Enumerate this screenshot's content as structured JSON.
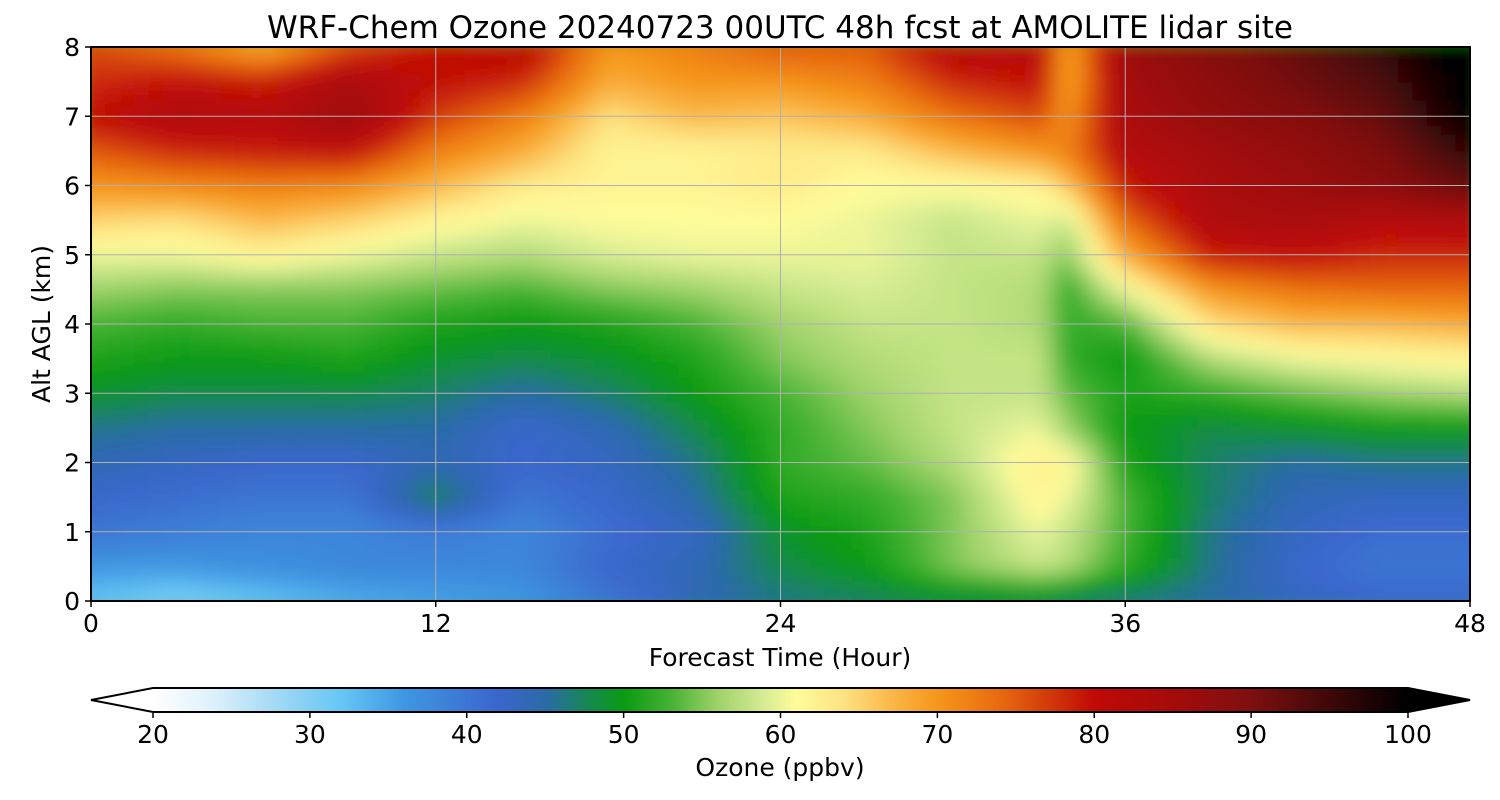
{
  "chart_data": {
    "type": "heatmap",
    "title": "WRF-Chem Ozone  20240723 00UTC 48h fcst at AMOLITE lidar site",
    "xlabel": "Forecast Time (Hour)",
    "ylabel": "Alt AGL (km)",
    "xlim": [
      0,
      48
    ],
    "ylim": [
      0,
      8
    ],
    "x_ticks": [
      "0",
      "12",
      "24",
      "36",
      "48"
    ],
    "y_ticks": [
      "0",
      "1",
      "2",
      "3",
      "4",
      "5",
      "6",
      "7",
      "8"
    ],
    "grid": true,
    "x": [
      0,
      3,
      6,
      9,
      12,
      15,
      18,
      21,
      24,
      27,
      30,
      33,
      34,
      36,
      39,
      42,
      45,
      48
    ],
    "y": [
      0,
      0.5,
      1,
      1.5,
      2,
      2.5,
      3,
      3.5,
      4,
      4.5,
      5,
      5.5,
      6,
      6.5,
      7,
      7.5,
      8
    ],
    "z": [
      [
        32,
        30,
        32,
        34,
        35,
        36,
        40,
        44,
        46,
        47,
        48,
        48,
        47,
        46,
        45,
        43,
        42,
        42
      ],
      [
        36,
        36,
        37,
        38,
        38,
        38,
        42,
        44,
        48,
        50,
        55,
        58,
        57,
        52,
        46,
        42,
        40,
        40
      ],
      [
        40,
        39,
        38,
        38,
        39,
        38,
        41,
        43,
        49,
        51,
        55,
        60,
        58,
        53,
        46,
        43,
        41,
        41
      ],
      [
        42,
        41,
        40,
        40,
        48,
        40,
        42,
        45,
        51,
        52,
        55,
        62,
        60,
        53,
        47,
        44,
        43,
        43
      ],
      [
        44,
        43,
        42,
        42,
        44,
        42,
        43,
        46,
        52,
        54,
        57,
        63,
        62,
        51,
        47,
        45,
        46,
        46
      ],
      [
        46,
        45,
        45,
        45,
        45,
        42,
        44,
        48,
        52,
        55,
        58,
        60,
        56,
        50,
        48,
        49,
        50,
        50
      ],
      [
        49,
        48,
        48,
        48,
        47,
        45,
        47,
        50,
        53,
        56,
        58,
        58,
        54,
        51,
        52,
        54,
        56,
        57
      ],
      [
        51,
        50,
        50,
        51,
        49,
        48,
        49,
        51,
        55,
        57,
        58,
        58,
        52,
        50,
        57,
        60,
        61,
        62
      ],
      [
        53,
        52,
        53,
        53,
        51,
        50,
        51,
        53,
        56,
        58,
        58,
        57,
        52,
        53,
        64,
        67,
        67,
        68
      ],
      [
        56,
        55,
        55,
        55,
        54,
        53,
        55,
        56,
        58,
        59,
        58,
        57,
        52,
        60,
        70,
        73,
        74,
        74
      ],
      [
        60,
        60,
        62,
        60,
        58,
        57,
        59,
        60,
        60,
        60,
        58,
        58,
        55,
        68,
        79,
        80,
        78,
        78
      ],
      [
        65,
        64,
        67,
        65,
        62,
        60,
        61,
        61,
        61,
        60,
        58,
        60,
        58,
        74,
        83,
        84,
        82,
        83
      ],
      [
        70,
        71,
        72,
        71,
        67,
        63,
        62,
        62,
        63,
        61,
        61,
        62,
        66,
        79,
        84,
        86,
        88,
        92
      ],
      [
        75,
        78,
        79,
        80,
        72,
        68,
        62,
        62,
        63,
        63,
        67,
        70,
        72,
        82,
        85,
        87,
        90,
        96
      ],
      [
        80,
        83,
        82,
        86,
        77,
        72,
        64,
        67,
        66,
        68,
        73,
        76,
        70,
        84,
        87,
        89,
        92,
        100
      ],
      [
        78,
        80,
        79,
        84,
        80,
        78,
        68,
        70,
        70,
        72,
        78,
        80,
        68,
        85,
        88,
        91,
        94,
        101
      ],
      [
        76,
        73,
        68,
        76,
        80,
        82,
        70,
        72,
        75,
        75,
        82,
        82,
        68,
        86,
        89,
        92,
        96,
        102
      ]
    ],
    "colorbar": {
      "label": "Ozone  (ppbv)",
      "min": 20,
      "max": 100,
      "ticks": [
        "20",
        "30",
        "40",
        "50",
        "60",
        "70",
        "80",
        "90",
        "100"
      ],
      "extend": "both",
      "stops": [
        [
          20,
          "#ffffff"
        ],
        [
          24,
          "#dbf0fb"
        ],
        [
          28,
          "#9fd8f5"
        ],
        [
          32,
          "#66c6f4"
        ],
        [
          36,
          "#3f97e2"
        ],
        [
          42,
          "#3a66cc"
        ],
        [
          45,
          "#2a6aa8"
        ],
        [
          48,
          "#158b4a"
        ],
        [
          50,
          "#0a9a12"
        ],
        [
          53,
          "#45b233"
        ],
        [
          56,
          "#9fd26a"
        ],
        [
          59,
          "#d7ec94"
        ],
        [
          61,
          "#fffc9a"
        ],
        [
          64,
          "#fde282"
        ],
        [
          67,
          "#fbb84a"
        ],
        [
          70,
          "#f5961a"
        ],
        [
          74,
          "#e86a10"
        ],
        [
          78,
          "#cc2c08"
        ],
        [
          80,
          "#c00a06"
        ],
        [
          85,
          "#a40b0a"
        ],
        [
          90,
          "#7e1010"
        ],
        [
          95,
          "#3f0808"
        ],
        [
          100,
          "#000000"
        ]
      ]
    }
  }
}
